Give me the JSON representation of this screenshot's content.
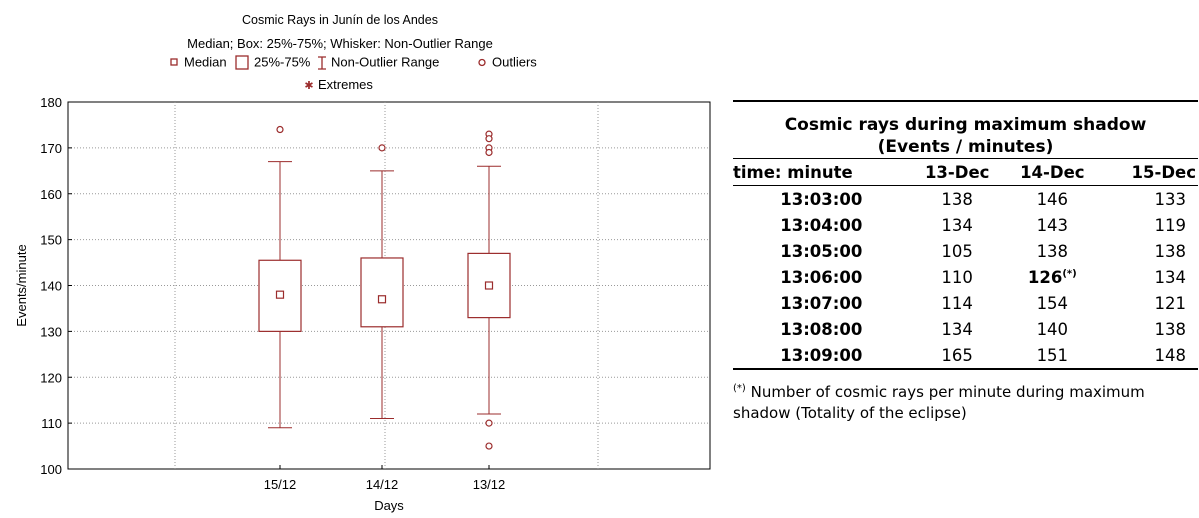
{
  "chart_data": {
    "type": "boxplot",
    "title": "Cosmic Rays in Junín de los Andes",
    "subtitle": "Median; Box: 25%-75%; Whisker: Non-Outlier Range",
    "legend": {
      "median": "Median",
      "box": "25%-75%",
      "whisker": "Non-Outlier Range",
      "outliers": "Outliers",
      "extremes": "Extremes",
      "placement": "top"
    },
    "xlabel": "Days",
    "ylabel": "Events/minute",
    "ylim": [
      100,
      180
    ],
    "yticks": [
      100,
      110,
      120,
      130,
      140,
      150,
      160,
      170,
      180
    ],
    "grid": true,
    "color": "#9b2c2c",
    "categories": [
      "15/12",
      "14/12",
      "13/12"
    ],
    "boxes": [
      {
        "label": "15/12",
        "median": 138,
        "q1": 130,
        "q3": 145.5,
        "whisker_low": 109,
        "whisker_high": 167,
        "outliers": [
          174
        ],
        "extremes": []
      },
      {
        "label": "14/12",
        "median": 137,
        "q1": 131,
        "q3": 146,
        "whisker_low": 111,
        "whisker_high": 165,
        "outliers": [
          170
        ],
        "extremes": []
      },
      {
        "label": "13/12",
        "median": 140,
        "q1": 133,
        "q3": 147,
        "whisker_low": 112,
        "whisker_high": 166,
        "outliers": [
          173,
          172,
          170,
          169,
          110,
          105
        ],
        "extremes": []
      }
    ]
  },
  "table": {
    "title_line1": "Cosmic rays during maximum shadow",
    "title_line2": "(Events / minutes)",
    "headers": [
      "time: minute",
      "13-Dec",
      "14-Dec",
      "15-Dec"
    ],
    "rows": [
      [
        "13:03:00",
        "138",
        "146",
        "133"
      ],
      [
        "13:04:00",
        "134",
        "143",
        "119"
      ],
      [
        "13:05:00",
        "105",
        "138",
        "138"
      ],
      [
        "13:06:00",
        "110",
        "126",
        "134"
      ],
      [
        "13:07:00",
        "114",
        "154",
        "121"
      ],
      [
        "13:08:00",
        "134",
        "140",
        "138"
      ],
      [
        "13:09:00",
        "165",
        "151",
        "148"
      ]
    ],
    "marker": "(*)",
    "note": "Number of cosmic rays per minute during maximum shadow (Totality of the eclipse)"
  }
}
